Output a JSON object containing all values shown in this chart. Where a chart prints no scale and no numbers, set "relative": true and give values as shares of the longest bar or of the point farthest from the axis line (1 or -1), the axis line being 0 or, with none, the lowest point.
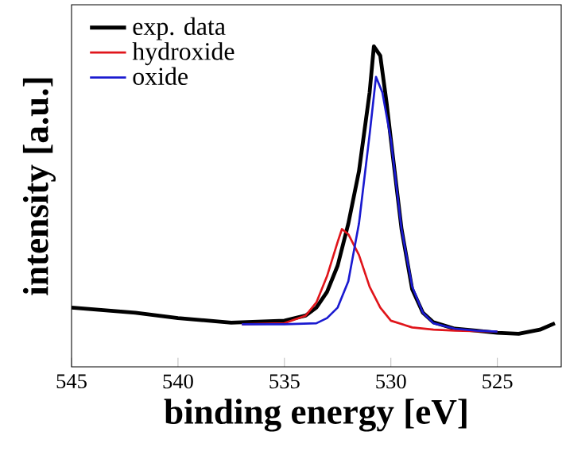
{
  "chart_data": {
    "type": "line",
    "xlabel": "binding energy [eV]",
    "ylabel": "intensity [a.u.]",
    "relative": true,
    "xlim": [
      545,
      522
    ],
    "xticks": [
      545,
      540,
      535,
      530,
      525
    ],
    "legend": "top left",
    "marker": "none",
    "line_style": "solid",
    "series": [
      {
        "name": "exp. data",
        "color": "#000000",
        "x": [
          545,
          542,
          540,
          537.5,
          535,
          534,
          533.5,
          533,
          532.5,
          532,
          531.5,
          531,
          530.8,
          530.5,
          530.2,
          530,
          529.5,
          529,
          528.5,
          528,
          527,
          526,
          525,
          524,
          523,
          522.3
        ],
        "values": [
          0.185,
          0.169,
          0.152,
          0.138,
          0.144,
          0.16,
          0.185,
          0.234,
          0.316,
          0.447,
          0.61,
          0.856,
          1.0,
          0.971,
          0.823,
          0.709,
          0.43,
          0.242,
          0.169,
          0.139,
          0.119,
          0.113,
          0.106,
          0.103,
          0.116,
          0.136
        ]
      },
      {
        "name": "hydroxide",
        "color": "#e0151b",
        "x": [
          537,
          535,
          534,
          533.5,
          533,
          532.5,
          532.3,
          532,
          531.5,
          531,
          530.5,
          530,
          529,
          528,
          527,
          525
        ],
        "values": [
          0.133,
          0.136,
          0.16,
          0.201,
          0.283,
          0.39,
          0.43,
          0.414,
          0.349,
          0.25,
          0.185,
          0.144,
          0.123,
          0.116,
          0.113,
          0.11
        ]
      },
      {
        "name": "oxide",
        "color": "#1a1ad0",
        "x": [
          537,
          535,
          533.5,
          533,
          532.5,
          532,
          531.5,
          531,
          530.7,
          530.4,
          530,
          529.5,
          529,
          528.5,
          528,
          527,
          526,
          525
        ],
        "values": [
          0.133,
          0.133,
          0.136,
          0.152,
          0.185,
          0.267,
          0.447,
          0.725,
          0.905,
          0.856,
          0.709,
          0.43,
          0.25,
          0.169,
          0.136,
          0.119,
          0.113,
          0.11
        ]
      }
    ]
  }
}
